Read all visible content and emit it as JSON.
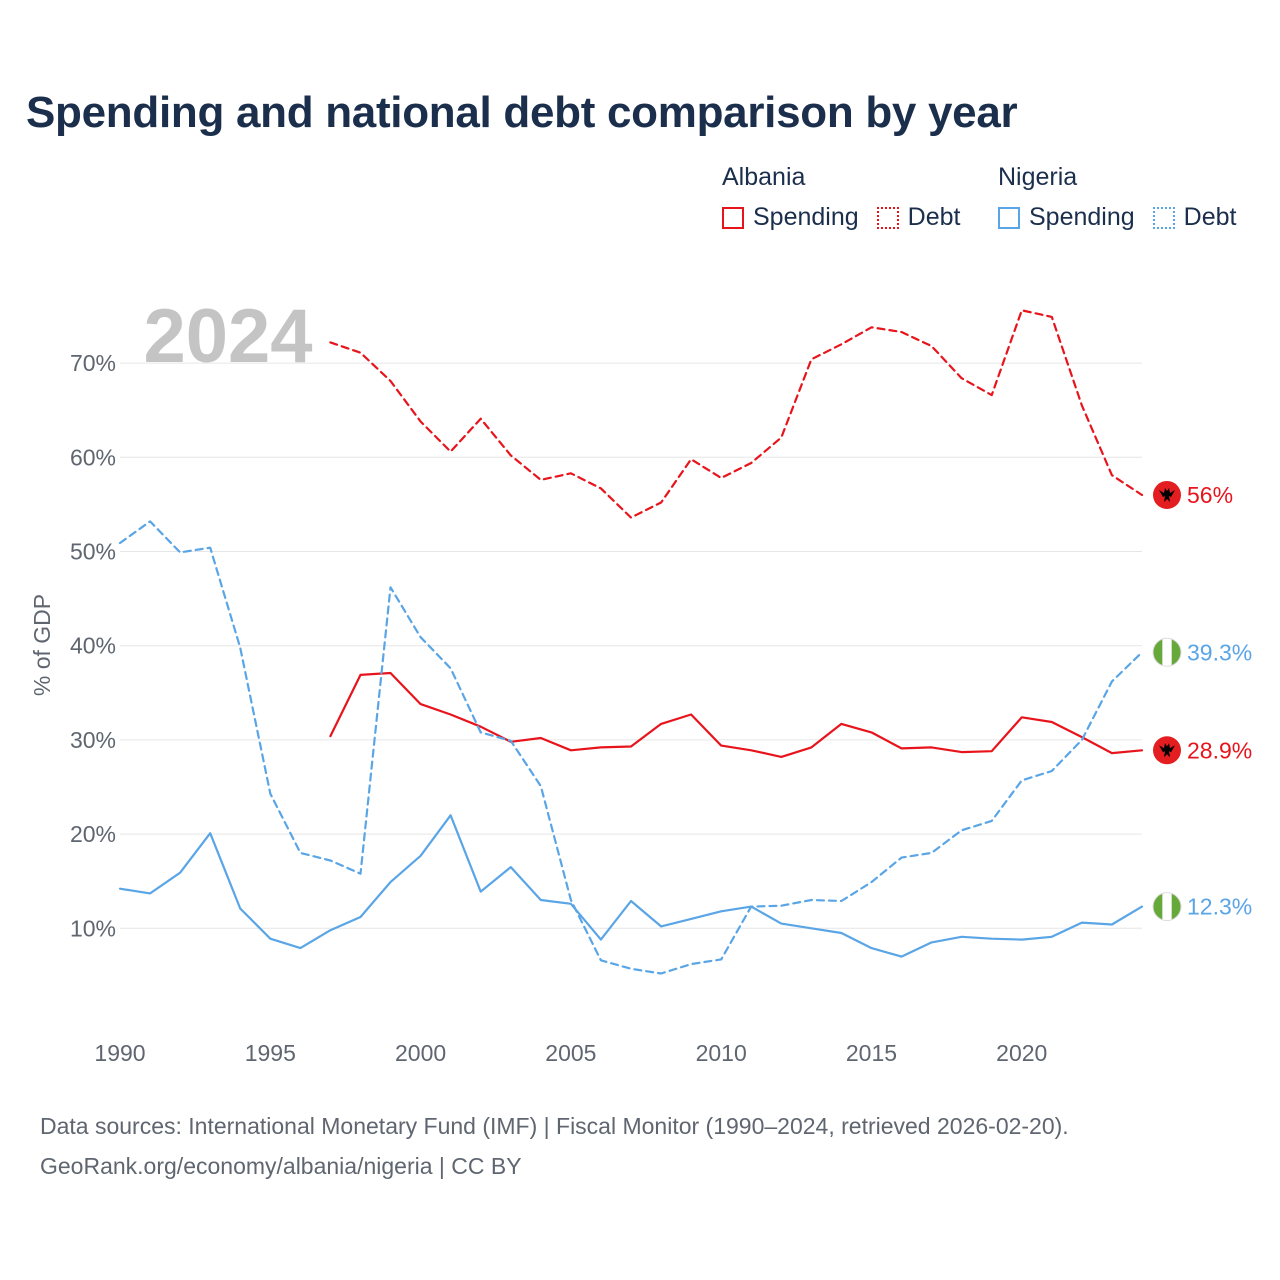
{
  "title": "Spending and national debt comparison by year",
  "legend": {
    "groups": [
      {
        "country": "Albania",
        "color": "#e8141c",
        "items": [
          {
            "label": "Spending",
            "style": "solid"
          },
          {
            "label": "Debt",
            "style": "dotted"
          }
        ]
      },
      {
        "country": "Nigeria",
        "color": "#5aa5e6",
        "items": [
          {
            "label": "Spending",
            "style": "solid"
          },
          {
            "label": "Debt",
            "style": "dotted"
          }
        ]
      }
    ]
  },
  "colors": {
    "albania": "#e8141c",
    "nigeria": "#5aa5e6",
    "grid": "#e6e6e6",
    "axis_text": "#5f6670",
    "year_watermark": "#c4c4c4"
  },
  "chart_data": {
    "type": "line",
    "title": "Spending and national debt comparison by year",
    "year_label": "2024",
    "ylabel": "% of GDP",
    "xlabel": "",
    "xlim": [
      1990,
      2024
    ],
    "ylim": [
      0,
      80
    ],
    "x_ticks": [
      1990,
      1995,
      2000,
      2005,
      2010,
      2015,
      2020
    ],
    "y_ticks": [
      10,
      20,
      30,
      40,
      50,
      60,
      70
    ],
    "y_tick_suffix": "%",
    "grid": true,
    "series": [
      {
        "id": "albania-debt",
        "country": "Albania",
        "name": "Debt",
        "style": "dashed",
        "color": "#e8141c",
        "end_label": "56%",
        "flag": "albania",
        "x": [
          1997,
          1998,
          1999,
          2000,
          2001,
          2002,
          2003,
          2004,
          2005,
          2006,
          2007,
          2008,
          2009,
          2010,
          2011,
          2012,
          2013,
          2014,
          2015,
          2016,
          2017,
          2018,
          2019,
          2020,
          2021,
          2022,
          2023,
          2024
        ],
        "values": [
          72.2,
          71.1,
          68.1,
          63.8,
          60.6,
          64.1,
          60.2,
          57.6,
          58.3,
          56.7,
          53.6,
          55.2,
          59.8,
          57.8,
          59.4,
          62.1,
          70.4,
          72.0,
          73.8,
          73.3,
          71.8,
          68.4,
          66.6,
          75.6,
          74.9,
          65.5,
          58.1,
          56.0
        ]
      },
      {
        "id": "albania-spending",
        "country": "Albania",
        "name": "Spending",
        "style": "solid",
        "color": "#e8141c",
        "end_label": "28.9%",
        "flag": "albania",
        "x": [
          1997,
          1998,
          1999,
          2000,
          2001,
          2002,
          2003,
          2004,
          2005,
          2006,
          2007,
          2008,
          2009,
          2010,
          2011,
          2012,
          2013,
          2014,
          2015,
          2016,
          2017,
          2018,
          2019,
          2020,
          2021,
          2022,
          2023,
          2024
        ],
        "values": [
          30.4,
          36.9,
          37.1,
          33.8,
          32.7,
          31.4,
          29.8,
          30.2,
          28.9,
          29.2,
          29.3,
          31.7,
          32.7,
          29.4,
          28.9,
          28.2,
          29.2,
          31.7,
          30.8,
          29.1,
          29.2,
          28.7,
          28.8,
          32.4,
          31.9,
          30.3,
          28.6,
          28.9
        ]
      },
      {
        "id": "nigeria-debt",
        "country": "Nigeria",
        "name": "Debt",
        "style": "dashed",
        "color": "#5aa5e6",
        "end_label": "39.3%",
        "flag": "nigeria",
        "x": [
          1990,
          1991,
          1992,
          1993,
          1994,
          1995,
          1996,
          1997,
          1998,
          1999,
          2000,
          2001,
          2002,
          2003,
          2004,
          2005,
          2006,
          2007,
          2008,
          2009,
          2010,
          2011,
          2012,
          2013,
          2014,
          2015,
          2016,
          2017,
          2018,
          2019,
          2020,
          2021,
          2022,
          2023,
          2024
        ],
        "values": [
          50.9,
          53.2,
          49.9,
          50.4,
          39.8,
          24.3,
          18.0,
          17.2,
          15.8,
          46.2,
          40.9,
          37.6,
          30.8,
          29.9,
          25.1,
          13.0,
          6.6,
          5.7,
          5.2,
          6.2,
          6.7,
          12.3,
          12.4,
          13.0,
          12.9,
          14.9,
          17.5,
          18.0,
          20.4,
          21.4,
          25.7,
          26.7,
          30.0,
          36.2,
          39.3
        ]
      },
      {
        "id": "nigeria-spending",
        "country": "Nigeria",
        "name": "Spending",
        "style": "solid",
        "color": "#5aa5e6",
        "end_label": "12.3%",
        "flag": "nigeria",
        "x": [
          1990,
          1991,
          1992,
          1993,
          1994,
          1995,
          1996,
          1997,
          1998,
          1999,
          2000,
          2001,
          2002,
          2003,
          2004,
          2005,
          2006,
          2007,
          2008,
          2009,
          2010,
          2011,
          2012,
          2013,
          2014,
          2015,
          2016,
          2017,
          2018,
          2019,
          2020,
          2021,
          2022,
          2023,
          2024
        ],
        "values": [
          14.2,
          13.7,
          15.9,
          20.1,
          12.1,
          8.9,
          7.9,
          9.8,
          11.2,
          14.9,
          17.7,
          22.0,
          13.9,
          16.5,
          13.0,
          12.6,
          8.8,
          12.9,
          10.2,
          11.0,
          11.8,
          12.3,
          10.5,
          10.0,
          9.5,
          7.9,
          7.0,
          8.5,
          9.1,
          8.9,
          8.8,
          9.1,
          10.6,
          10.4,
          12.3
        ]
      }
    ]
  },
  "footer": {
    "line1": "Data sources: International Monetary Fund (IMF) | Fiscal Monitor (1990–2024, retrieved 2026-02-20).",
    "line2": "GeoRank.org/economy/albania/nigeria | CC BY"
  }
}
